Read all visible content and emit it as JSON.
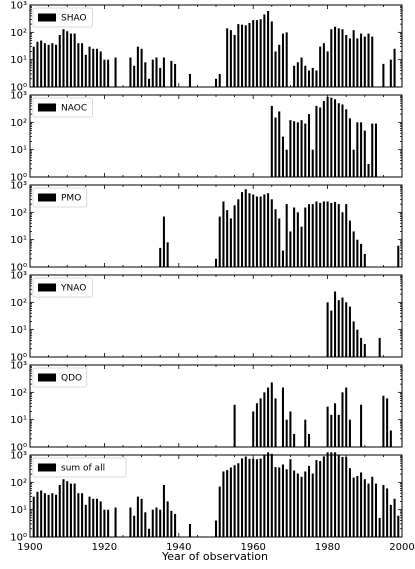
{
  "chart_data": {
    "type": "bar",
    "subtype": "stacked-panels",
    "xlabel": "Year of observation",
    "xlim": [
      1900,
      2000
    ],
    "xticks": [
      1900,
      1920,
      1940,
      1960,
      1980,
      2000
    ],
    "yscale": "log",
    "ylim": [
      1,
      1000
    ],
    "ytick_labels": [
      "10⁰",
      "10¹",
      "10²",
      "10³"
    ],
    "legend_position": "upper-left",
    "grid": false,
    "bar_color": "#000000",
    "panels": [
      {
        "name": "SHAO",
        "bars": [
          [
            1901,
            30
          ],
          [
            1902,
            45
          ],
          [
            1903,
            50
          ],
          [
            1904,
            40
          ],
          [
            1905,
            35
          ],
          [
            1906,
            40
          ],
          [
            1907,
            35
          ],
          [
            1908,
            80
          ],
          [
            1909,
            130
          ],
          [
            1910,
            110
          ],
          [
            1911,
            90
          ],
          [
            1912,
            90
          ],
          [
            1913,
            40
          ],
          [
            1914,
            40
          ],
          [
            1915,
            15
          ],
          [
            1916,
            30
          ],
          [
            1917,
            25
          ],
          [
            1918,
            25
          ],
          [
            1919,
            20
          ],
          [
            1920,
            10
          ],
          [
            1921,
            10
          ],
          [
            1923,
            12
          ],
          [
            1927,
            12
          ],
          [
            1928,
            6
          ],
          [
            1929,
            30
          ],
          [
            1930,
            25
          ],
          [
            1931,
            8
          ],
          [
            1932,
            2
          ],
          [
            1933,
            10
          ],
          [
            1934,
            12
          ],
          [
            1935,
            5
          ],
          [
            1936,
            12
          ],
          [
            1938,
            9
          ],
          [
            1939,
            7
          ],
          [
            1943,
            3
          ],
          [
            1950,
            2
          ],
          [
            1951,
            3
          ],
          [
            1953,
            140
          ],
          [
            1954,
            120
          ],
          [
            1955,
            80
          ],
          [
            1956,
            200
          ],
          [
            1957,
            190
          ],
          [
            1958,
            180
          ],
          [
            1959,
            220
          ],
          [
            1960,
            280
          ],
          [
            1961,
            280
          ],
          [
            1962,
            300
          ],
          [
            1963,
            450
          ],
          [
            1964,
            600
          ],
          [
            1965,
            250
          ],
          [
            1966,
            20
          ],
          [
            1967,
            35
          ],
          [
            1968,
            90
          ],
          [
            1969,
            100
          ],
          [
            1971,
            6
          ],
          [
            1972,
            8
          ],
          [
            1973,
            12
          ],
          [
            1974,
            6
          ],
          [
            1975,
            4
          ],
          [
            1976,
            5
          ],
          [
            1977,
            4
          ],
          [
            1978,
            30
          ],
          [
            1979,
            40
          ],
          [
            1980,
            20
          ],
          [
            1981,
            130
          ],
          [
            1982,
            160
          ],
          [
            1983,
            140
          ],
          [
            1984,
            130
          ],
          [
            1985,
            80
          ],
          [
            1986,
            60
          ],
          [
            1987,
            120
          ],
          [
            1988,
            60
          ],
          [
            1989,
            90
          ],
          [
            1990,
            70
          ],
          [
            1991,
            90
          ],
          [
            1992,
            70
          ],
          [
            1995,
            7
          ],
          [
            1997,
            10
          ],
          [
            1998,
            25
          ]
        ]
      },
      {
        "name": "NAOC",
        "bars": [
          [
            1965,
            400
          ],
          [
            1966,
            150
          ],
          [
            1967,
            250
          ],
          [
            1968,
            30
          ],
          [
            1969,
            10
          ],
          [
            1970,
            120
          ],
          [
            1971,
            110
          ],
          [
            1972,
            100
          ],
          [
            1973,
            120
          ],
          [
            1974,
            90
          ],
          [
            1975,
            200
          ],
          [
            1976,
            10
          ],
          [
            1977,
            400
          ],
          [
            1978,
            350
          ],
          [
            1979,
            600
          ],
          [
            1980,
            850
          ],
          [
            1981,
            800
          ],
          [
            1982,
            700
          ],
          [
            1983,
            500
          ],
          [
            1984,
            450
          ],
          [
            1985,
            300
          ],
          [
            1986,
            140
          ],
          [
            1987,
            10
          ],
          [
            1988,
            100
          ],
          [
            1989,
            100
          ],
          [
            1990,
            50
          ],
          [
            1991,
            3
          ],
          [
            1992,
            90
          ],
          [
            1993,
            90
          ]
        ]
      },
      {
        "name": "PMO",
        "bars": [
          [
            1935,
            5
          ],
          [
            1936,
            70
          ],
          [
            1937,
            8
          ],
          [
            1950,
            2
          ],
          [
            1951,
            70
          ],
          [
            1952,
            250
          ],
          [
            1953,
            120
          ],
          [
            1954,
            60
          ],
          [
            1955,
            180
          ],
          [
            1956,
            300
          ],
          [
            1957,
            550
          ],
          [
            1958,
            700
          ],
          [
            1959,
            500
          ],
          [
            1960,
            450
          ],
          [
            1961,
            380
          ],
          [
            1962,
            380
          ],
          [
            1963,
            450
          ],
          [
            1964,
            500
          ],
          [
            1965,
            300
          ],
          [
            1966,
            130
          ],
          [
            1967,
            60
          ],
          [
            1968,
            4
          ],
          [
            1969,
            200
          ],
          [
            1970,
            20
          ],
          [
            1971,
            150
          ],
          [
            1972,
            100
          ],
          [
            1973,
            30
          ],
          [
            1974,
            150
          ],
          [
            1975,
            200
          ],
          [
            1976,
            200
          ],
          [
            1977,
            250
          ],
          [
            1978,
            220
          ],
          [
            1979,
            250
          ],
          [
            1980,
            250
          ],
          [
            1981,
            220
          ],
          [
            1982,
            240
          ],
          [
            1983,
            200
          ],
          [
            1984,
            100
          ],
          [
            1985,
            200
          ],
          [
            1986,
            50
          ],
          [
            1987,
            20
          ],
          [
            1988,
            10
          ],
          [
            1989,
            7
          ],
          [
            1990,
            3
          ],
          [
            1999,
            6
          ]
        ]
      },
      {
        "name": "YNAO",
        "bars": [
          [
            1980,
            100
          ],
          [
            1981,
            50
          ],
          [
            1982,
            250
          ],
          [
            1983,
            120
          ],
          [
            1984,
            150
          ],
          [
            1985,
            100
          ],
          [
            1986,
            70
          ],
          [
            1987,
            20
          ],
          [
            1988,
            10
          ],
          [
            1989,
            5
          ],
          [
            1990,
            3
          ],
          [
            1994,
            5
          ]
        ]
      },
      {
        "name": "QDO",
        "bars": [
          [
            1955,
            35
          ],
          [
            1960,
            20
          ],
          [
            1961,
            40
          ],
          [
            1962,
            60
          ],
          [
            1963,
            100
          ],
          [
            1964,
            150
          ],
          [
            1965,
            230
          ],
          [
            1966,
            60
          ],
          [
            1968,
            150
          ],
          [
            1969,
            10
          ],
          [
            1970,
            20
          ],
          [
            1971,
            3
          ],
          [
            1974,
            10
          ],
          [
            1975,
            3
          ],
          [
            1980,
            30
          ],
          [
            1981,
            15
          ],
          [
            1982,
            40
          ],
          [
            1983,
            15
          ],
          [
            1984,
            100
          ],
          [
            1985,
            150
          ],
          [
            1986,
            10
          ],
          [
            1989,
            35
          ],
          [
            1995,
            75
          ],
          [
            1996,
            60
          ],
          [
            1997,
            4
          ]
        ]
      },
      {
        "name": "sum of all",
        "bars": [
          [
            1901,
            30
          ],
          [
            1902,
            45
          ],
          [
            1903,
            50
          ],
          [
            1904,
            40
          ],
          [
            1905,
            35
          ],
          [
            1906,
            40
          ],
          [
            1907,
            35
          ],
          [
            1908,
            80
          ],
          [
            1909,
            130
          ],
          [
            1910,
            110
          ],
          [
            1911,
            90
          ],
          [
            1912,
            90
          ],
          [
            1913,
            40
          ],
          [
            1914,
            40
          ],
          [
            1915,
            15
          ],
          [
            1916,
            30
          ],
          [
            1917,
            25
          ],
          [
            1918,
            25
          ],
          [
            1919,
            20
          ],
          [
            1920,
            10
          ],
          [
            1921,
            10
          ],
          [
            1923,
            12
          ],
          [
            1927,
            12
          ],
          [
            1928,
            6
          ],
          [
            1929,
            30
          ],
          [
            1930,
            25
          ],
          [
            1931,
            8
          ],
          [
            1932,
            2
          ],
          [
            1933,
            10
          ],
          [
            1934,
            12
          ],
          [
            1935,
            10
          ],
          [
            1936,
            80
          ],
          [
            1937,
            20
          ],
          [
            1938,
            9
          ],
          [
            1939,
            7
          ],
          [
            1943,
            3
          ],
          [
            1950,
            4
          ],
          [
            1951,
            70
          ],
          [
            1952,
            250
          ],
          [
            1953,
            280
          ],
          [
            1954,
            350
          ],
          [
            1955,
            420
          ],
          [
            1956,
            500
          ],
          [
            1957,
            750
          ],
          [
            1958,
            880
          ],
          [
            1959,
            720
          ],
          [
            1960,
            730
          ],
          [
            1961,
            700
          ],
          [
            1962,
            740
          ],
          [
            1963,
            1000
          ],
          [
            1964,
            1250
          ],
          [
            1965,
            1100
          ],
          [
            1966,
            360
          ],
          [
            1967,
            350
          ],
          [
            1968,
            450
          ],
          [
            1969,
            300
          ],
          [
            1970,
            700
          ],
          [
            1971,
            270
          ],
          [
            1972,
            210
          ],
          [
            1973,
            160
          ],
          [
            1974,
            250
          ],
          [
            1975,
            400
          ],
          [
            1976,
            210
          ],
          [
            1977,
            650
          ],
          [
            1978,
            600
          ],
          [
            1979,
            890
          ],
          [
            1980,
            1250
          ],
          [
            1981,
            1250
          ],
          [
            1982,
            1250
          ],
          [
            1983,
            1000
          ],
          [
            1984,
            850
          ],
          [
            1985,
            850
          ],
          [
            1986,
            330
          ],
          [
            1987,
            150
          ],
          [
            1988,
            170
          ],
          [
            1989,
            230
          ],
          [
            1990,
            130
          ],
          [
            1991,
            90
          ],
          [
            1992,
            160
          ],
          [
            1993,
            90
          ],
          [
            1994,
            5
          ],
          [
            1995,
            80
          ],
          [
            1996,
            60
          ],
          [
            1997,
            15
          ],
          [
            1998,
            25
          ],
          [
            1999,
            6
          ]
        ]
      }
    ]
  }
}
